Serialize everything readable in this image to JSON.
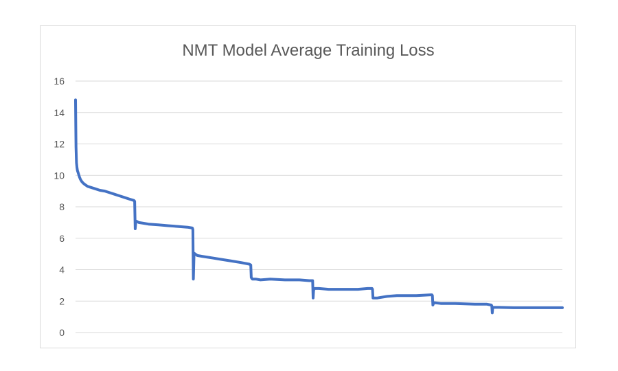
{
  "chart_data": {
    "type": "line",
    "title": "NMT Model Average Training Loss",
    "xlabel": "",
    "ylabel": "",
    "ylim": [
      0,
      16
    ],
    "yticks": [
      0,
      2,
      4,
      6,
      8,
      10,
      12,
      14,
      16
    ],
    "xlim": [
      0,
      100
    ],
    "grid": true,
    "legend": "none",
    "series": [
      {
        "color": "#4472c4",
        "x": [
          0,
          0.05,
          0.1,
          0.15,
          0.2,
          0.3,
          0.4,
          0.6,
          0.8,
          1.0,
          1.3,
          1.6,
          2.0,
          2.5,
          3.0,
          4.0,
          5.0,
          6.0,
          7.0,
          8.0,
          9.0,
          10.0,
          11.0,
          12.0,
          12.15,
          12.25,
          12.4,
          13.0,
          14.0,
          15.0,
          17.0,
          19.0,
          21.0,
          23.0,
          24.0,
          24.1,
          24.2,
          24.35,
          25.0,
          26.0,
          28.0,
          30.0,
          32.0,
          34.0,
          35.7,
          36.0,
          36.1,
          36.3,
          37.0,
          38.0,
          40.0,
          43.0,
          46.0,
          48.0,
          48.7,
          48.8,
          48.9,
          49.1,
          50.0,
          52.0,
          55.0,
          58.0,
          60.0,
          60.9,
          61.0,
          61.1,
          61.3,
          62.0,
          64.0,
          66.0,
          70.0,
          73.0,
          73.2,
          73.3,
          73.4,
          73.6,
          75.0,
          78.0,
          82.0,
          84.5,
          85.4,
          85.5,
          85.6,
          85.7,
          87.0,
          90.0,
          94.0,
          100.0
        ],
        "y": [
          14.8,
          13.0,
          11.8,
          11.2,
          10.8,
          10.5,
          10.3,
          10.1,
          9.9,
          9.75,
          9.6,
          9.5,
          9.4,
          9.3,
          9.25,
          9.15,
          9.05,
          9.0,
          8.9,
          8.8,
          8.7,
          8.6,
          8.5,
          8.4,
          8.35,
          6.6,
          7.1,
          7.0,
          6.95,
          6.9,
          6.85,
          6.8,
          6.75,
          6.7,
          6.65,
          6.55,
          3.4,
          5.05,
          4.9,
          4.85,
          4.75,
          4.65,
          4.55,
          4.45,
          4.35,
          4.3,
          3.5,
          3.4,
          3.4,
          3.35,
          3.4,
          3.35,
          3.35,
          3.3,
          3.3,
          2.2,
          2.7,
          2.8,
          2.8,
          2.75,
          2.75,
          2.75,
          2.8,
          2.8,
          2.75,
          2.2,
          2.2,
          2.2,
          2.3,
          2.35,
          2.35,
          2.4,
          2.4,
          2.35,
          1.75,
          1.9,
          1.85,
          1.85,
          1.8,
          1.8,
          1.75,
          1.7,
          1.25,
          1.6,
          1.6,
          1.58,
          1.58,
          1.58
        ]
      }
    ]
  }
}
